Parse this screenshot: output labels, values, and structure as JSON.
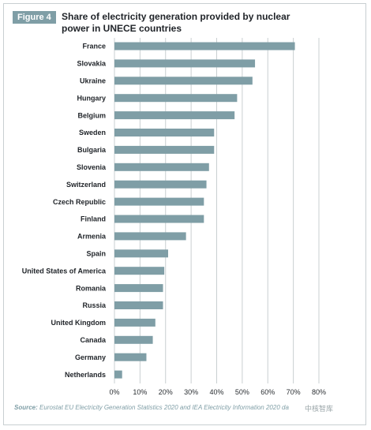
{
  "figure": {
    "badge": "Figure 4",
    "title": "Share of electricity generation provided by nuclear power in UNECE countries"
  },
  "source": {
    "label": "Source:",
    "text": "Eurostat EU Electricity Generation Statistics 2020 and IEA Electricity Information 2020 da"
  },
  "watermark": "中核智库",
  "colors": {
    "bar": "#7f9ea6",
    "grid": "#c9cfd1",
    "badge": "#7f9ea6"
  },
  "chart_data": {
    "type": "bar",
    "orientation": "horizontal",
    "categories": [
      "France",
      "Slovakia",
      "Ukraine",
      "Hungary",
      "Belgium",
      "Sweden",
      "Bulgaria",
      "Slovenia",
      "Switzerland",
      "Czech Republic",
      "Finland",
      "Armenia",
      "Spain",
      "United States of America",
      "Romania",
      "Russia",
      "United Kingdom",
      "Canada",
      "Germany",
      "Netherlands"
    ],
    "values": [
      70.6,
      55,
      54,
      48,
      47,
      39,
      39,
      37,
      36,
      35,
      35,
      28,
      21,
      19.5,
      19,
      19,
      16,
      15,
      12.5,
      3
    ],
    "xlim": [
      0,
      80
    ],
    "xticks": [
      "0%",
      "10%",
      "20%",
      "30%",
      "40%",
      "50%",
      "60%",
      "70%",
      "80%"
    ],
    "grid": true
  }
}
